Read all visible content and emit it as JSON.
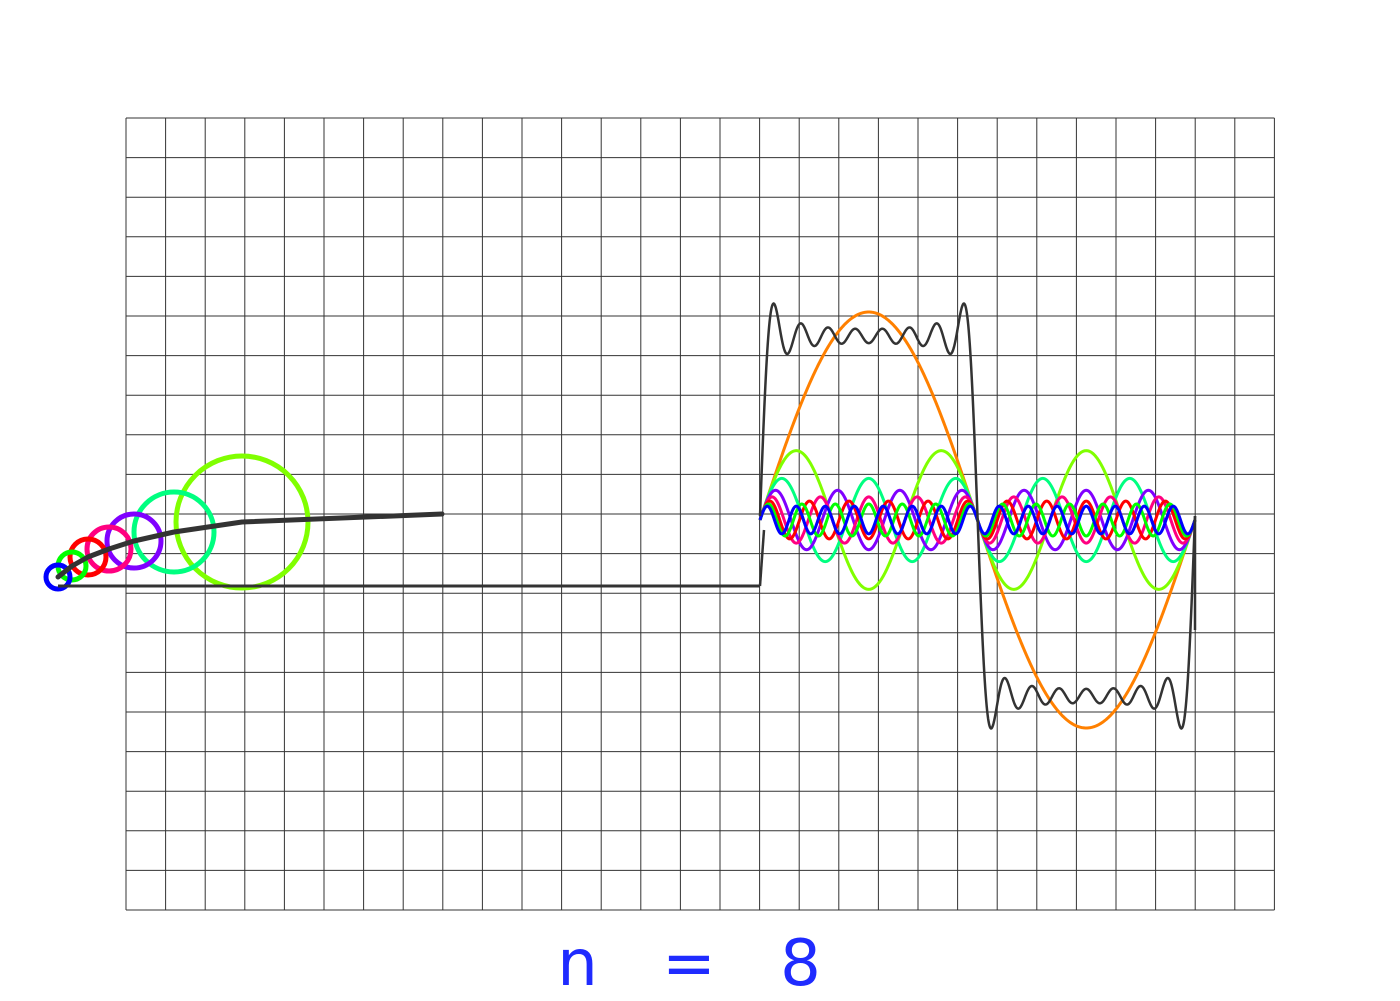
{
  "caption": "n = 8",
  "terms": 8,
  "colors": {
    "background": "#ffffff",
    "grid": "#333333",
    "sum_wave": "#333333",
    "caption": "#1f2bff"
  },
  "harmonics": [
    {
      "k": 1,
      "color": "#ff8000",
      "icon": "harmonic-1"
    },
    {
      "k": 3,
      "color": "#80ff00",
      "icon": "harmonic-3"
    },
    {
      "k": 5,
      "color": "#00ff80",
      "icon": "harmonic-5"
    },
    {
      "k": 7,
      "color": "#8000ff",
      "icon": "harmonic-7"
    },
    {
      "k": 9,
      "color": "#ff0080",
      "icon": "harmonic-9"
    },
    {
      "k": 11,
      "color": "#ff0000",
      "icon": "harmonic-11"
    },
    {
      "k": 13,
      "color": "#00ff00",
      "icon": "harmonic-13"
    },
    {
      "k": 15,
      "color": "#0000ff",
      "icon": "harmonic-15"
    }
  ]
}
